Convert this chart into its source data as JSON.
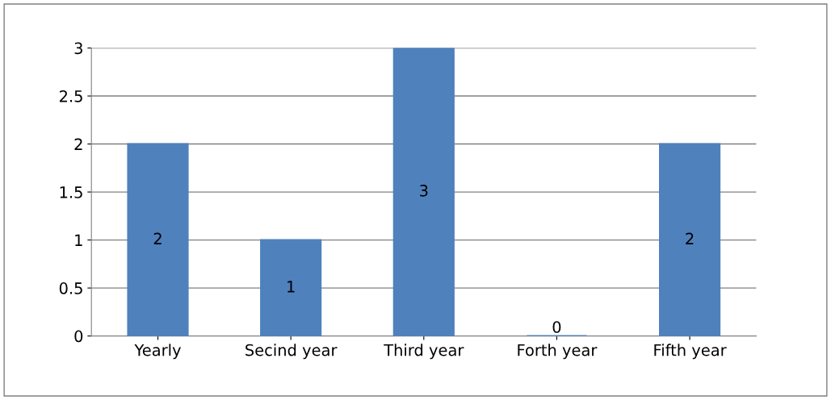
{
  "chart_data": {
    "type": "bar",
    "categories": [
      "Yearly",
      "Secind year",
      "Third year",
      "Forth year",
      "Fifth year"
    ],
    "values": [
      2,
      1,
      3,
      0,
      2
    ],
    "color": "#4f81bd",
    "ylim": [
      0,
      3
    ],
    "yticks": [
      0,
      0.5,
      1,
      1.5,
      2,
      2.5,
      3
    ],
    "grid": "y",
    "data_labels": true
  }
}
